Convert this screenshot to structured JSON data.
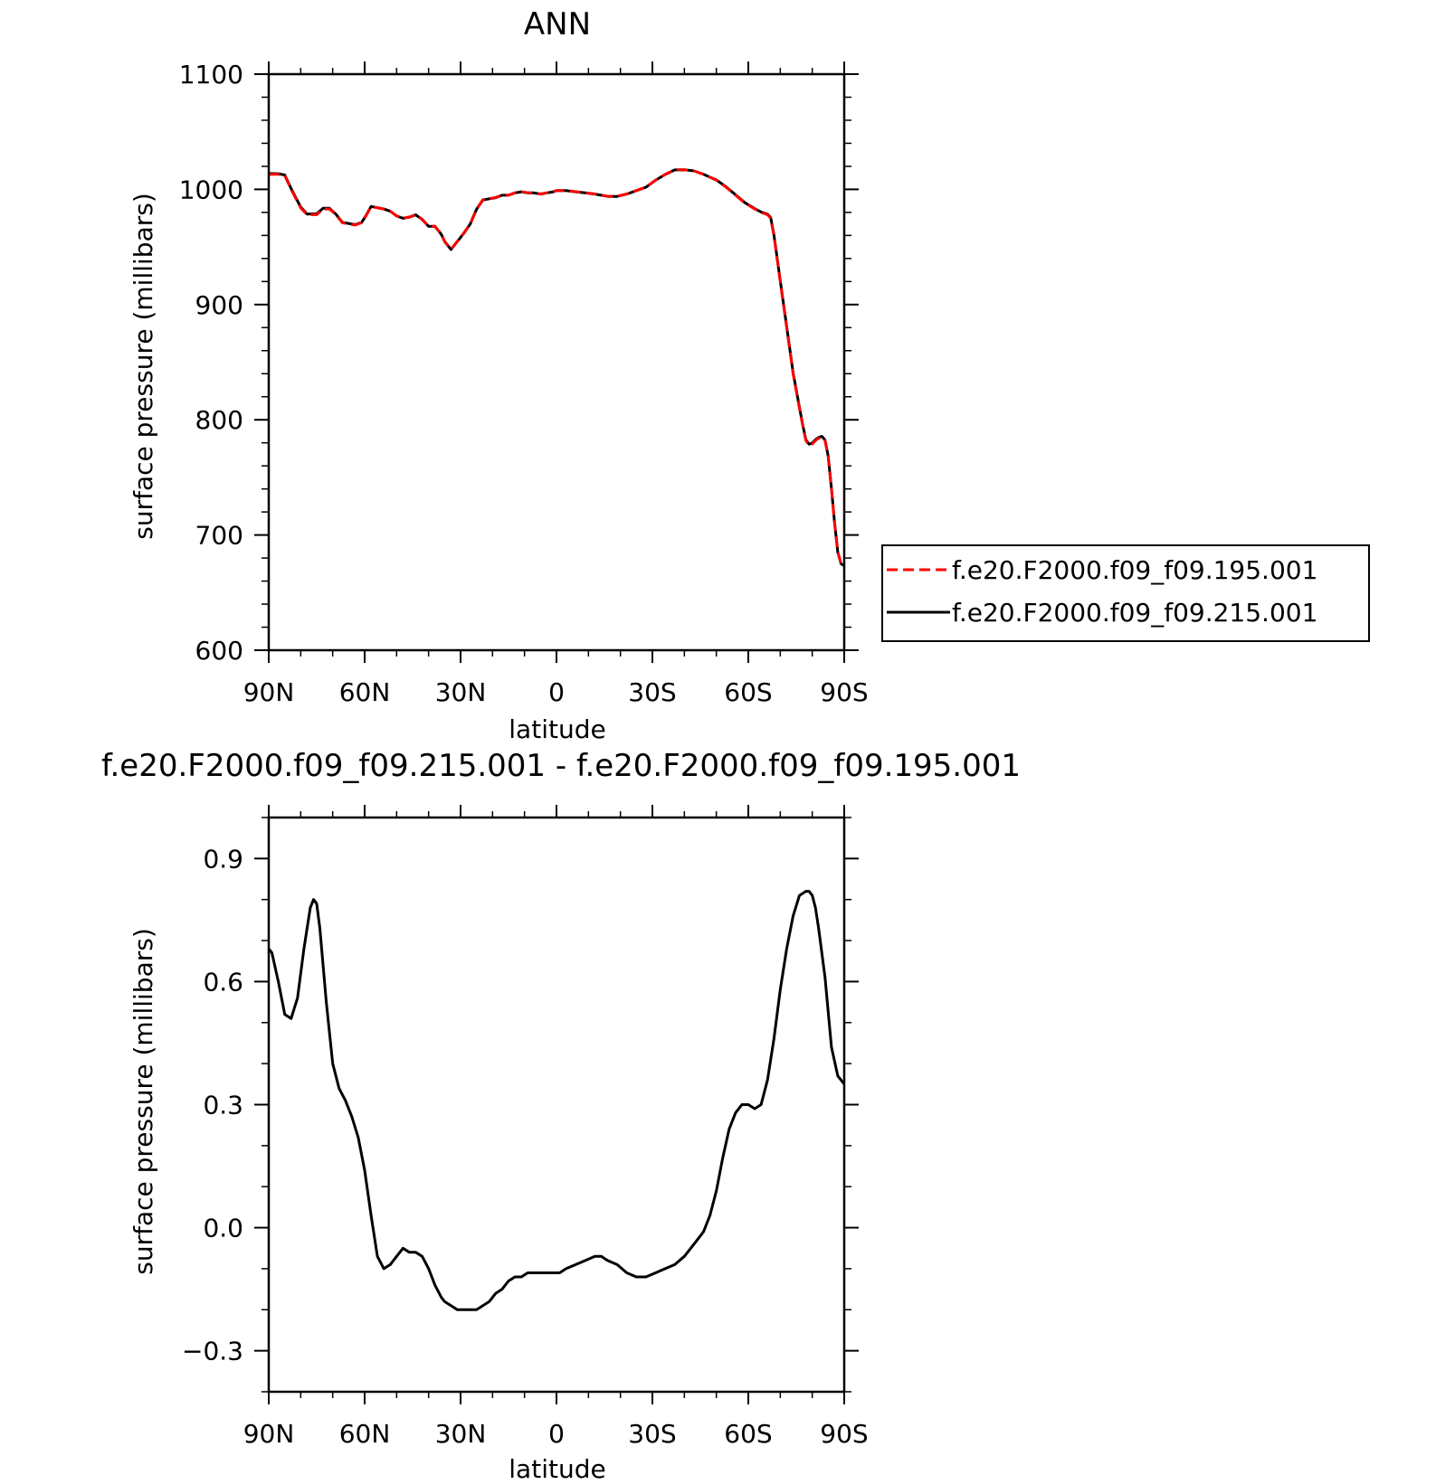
{
  "chart_data": [
    {
      "type": "line",
      "title": "ANN",
      "xlabel": "latitude",
      "ylabel": "surface pressure (millibars)",
      "xlim": [
        90,
        -90
      ],
      "ylim": [
        600,
        1100
      ],
      "x_ticks": [
        90,
        60,
        30,
        0,
        -30,
        -60,
        -90
      ],
      "x_tick_labels": [
        "90N",
        "60N",
        "30N",
        "0",
        "30S",
        "60S",
        "90S"
      ],
      "y_ticks": [
        600,
        700,
        800,
        900,
        1000,
        1100
      ],
      "y_tick_labels": [
        "600",
        "700",
        "800",
        "900",
        "1000",
        "1100"
      ],
      "legend_position": "right",
      "series": [
        {
          "name": "f.e20.F2000.f09_f09.195.001",
          "color": "#ff0000",
          "dash": "dashed",
          "x": [
            90,
            87,
            85,
            83,
            80,
            78,
            75,
            73,
            71,
            69,
            67,
            65,
            63,
            61,
            60,
            58,
            56,
            54,
            52,
            50,
            48,
            46,
            44,
            42,
            40,
            38,
            36,
            35,
            33,
            31,
            29,
            27,
            25,
            23,
            21,
            19,
            17,
            15,
            13,
            11,
            9,
            7,
            5,
            3,
            1,
            0,
            -3,
            -6,
            -9,
            -12,
            -14,
            -16,
            -19,
            -22,
            -25,
            -28,
            -31,
            -34,
            -37,
            -40,
            -43,
            -46,
            -50,
            -53,
            -56,
            -59,
            -62,
            -64,
            -66,
            -67,
            -68,
            -70,
            -72,
            -74,
            -76,
            -77,
            -78,
            -79,
            -80,
            -81,
            -82,
            -83,
            -84,
            -85,
            -86,
            -87,
            -88,
            -89,
            -90
          ],
          "values": [
            1013,
            1013,
            1012,
            1000,
            984,
            978,
            978,
            983,
            983,
            978,
            971,
            970,
            969,
            971,
            975,
            985,
            984,
            983,
            981,
            977,
            975,
            976,
            978,
            974,
            968,
            968,
            961,
            955,
            948,
            955,
            962,
            970,
            983,
            991,
            992,
            993,
            995,
            995,
            997,
            998,
            997,
            997,
            996,
            997,
            998,
            999,
            999,
            998,
            997,
            996,
            995,
            994,
            994,
            996,
            999,
            1002,
            1008,
            1013,
            1017,
            1017,
            1016,
            1013,
            1008,
            1002,
            995,
            988,
            983,
            980,
            978,
            975,
            960,
            920,
            880,
            840,
            810,
            795,
            782,
            778,
            779,
            782,
            784,
            785,
            782,
            768,
            740,
            710,
            685,
            675,
            673
          ]
        },
        {
          "name": "f.e20.F2000.f09_f09.215.001",
          "color": "#000000",
          "dash": "solid",
          "x": [
            90,
            87,
            85,
            83,
            80,
            78,
            75,
            73,
            71,
            69,
            67,
            65,
            63,
            61,
            60,
            58,
            56,
            54,
            52,
            50,
            48,
            46,
            44,
            42,
            40,
            38,
            36,
            35,
            33,
            31,
            29,
            27,
            25,
            23,
            21,
            19,
            17,
            15,
            13,
            11,
            9,
            7,
            5,
            3,
            1,
            0,
            -3,
            -6,
            -9,
            -12,
            -14,
            -16,
            -19,
            -22,
            -25,
            -28,
            -31,
            -34,
            -37,
            -40,
            -43,
            -46,
            -50,
            -53,
            -56,
            -59,
            -62,
            -64,
            -66,
            -67,
            -68,
            -70,
            -72,
            -74,
            -76,
            -77,
            -78,
            -79,
            -80,
            -81,
            -82,
            -83,
            -84,
            -85,
            -86,
            -87,
            -88,
            -89,
            -90
          ],
          "values": [
            1013.7,
            1013.6,
            1012.5,
            1000.8,
            984.7,
            978.6,
            978.8,
            983.7,
            983.6,
            978.5,
            971.4,
            970.4,
            969.4,
            971.3,
            975.3,
            985.2,
            984.1,
            983.0,
            981.0,
            976.9,
            974.9,
            975.9,
            977.9,
            973.9,
            967.9,
            967.9,
            960.9,
            954.9,
            947.8,
            954.8,
            961.8,
            969.8,
            982.8,
            990.8,
            991.8,
            992.8,
            994.9,
            994.9,
            996.9,
            997.9,
            996.9,
            996.9,
            995.9,
            996.9,
            997.9,
            998.9,
            998.9,
            997.9,
            996.9,
            995.9,
            994.9,
            993.9,
            993.9,
            995.9,
            998.9,
            1001.9,
            1007.9,
            1012.9,
            1016.9,
            1017.0,
            1016.0,
            1013.1,
            1008.2,
            1002.3,
            995.3,
            988.3,
            983.3,
            980.4,
            978.5,
            975.6,
            960.7,
            920.8,
            880.9,
            840.9,
            810.8,
            795.8,
            782.8,
            778.8,
            779.8,
            782.8,
            784.7,
            785.6,
            782.5,
            768.4,
            740.3,
            710.2,
            685.1,
            675.0,
            673.4
          ]
        }
      ]
    },
    {
      "type": "line",
      "title": "f.e20.F2000.f09_f09.215.001 - f.e20.F2000.f09_f09.195.001",
      "xlabel": "latitude",
      "ylabel": "surface pressure (millibars)",
      "xlim": [
        90,
        -90
      ],
      "ylim": [
        -0.4,
        1.0
      ],
      "x_ticks": [
        90,
        60,
        30,
        0,
        -30,
        -60,
        -90
      ],
      "x_tick_labels": [
        "90N",
        "60N",
        "30N",
        "0",
        "30S",
        "60S",
        "90S"
      ],
      "y_ticks": [
        -0.3,
        0.0,
        0.3,
        0.6,
        0.9
      ],
      "y_tick_labels": [
        "−0.3",
        "0.0",
        "0.3",
        "0.6",
        "0.9"
      ],
      "series": [
        {
          "color": "#000000",
          "dash": "solid",
          "x": [
            90,
            89,
            87,
            85,
            83,
            81,
            79,
            77,
            76,
            75,
            74,
            72,
            70,
            68,
            66,
            64,
            62,
            60,
            58,
            56,
            54,
            52,
            50,
            48,
            46,
            44,
            42,
            40,
            38,
            36,
            35,
            33,
            31,
            29,
            27,
            25,
            23,
            21,
            19,
            17,
            15,
            13,
            11,
            9,
            7,
            5,
            3,
            1,
            -1,
            -3,
            -6,
            -9,
            -12,
            -14,
            -16,
            -19,
            -22,
            -25,
            -28,
            -31,
            -34,
            -37,
            -40,
            -42,
            -44,
            -46,
            -48,
            -50,
            -52,
            -54,
            -56,
            -58,
            -60,
            -62,
            -64,
            -66,
            -68,
            -70,
            -72,
            -74,
            -76,
            -78,
            -79,
            -80,
            -81,
            -82,
            -84,
            -86,
            -88,
            -89,
            -90
          ],
          "values": [
            0.68,
            0.67,
            0.6,
            0.52,
            0.51,
            0.56,
            0.68,
            0.78,
            0.8,
            0.79,
            0.73,
            0.55,
            0.4,
            0.34,
            0.31,
            0.27,
            0.22,
            0.14,
            0.03,
            -0.07,
            -0.1,
            -0.09,
            -0.07,
            -0.05,
            -0.06,
            -0.06,
            -0.07,
            -0.1,
            -0.14,
            -0.17,
            -0.18,
            -0.19,
            -0.2,
            -0.2,
            -0.2,
            -0.2,
            -0.19,
            -0.18,
            -0.16,
            -0.15,
            -0.13,
            -0.12,
            -0.12,
            -0.11,
            -0.11,
            -0.11,
            -0.11,
            -0.11,
            -0.11,
            -0.1,
            -0.09,
            -0.08,
            -0.07,
            -0.07,
            -0.08,
            -0.09,
            -0.11,
            -0.12,
            -0.12,
            -0.11,
            -0.1,
            -0.09,
            -0.07,
            -0.05,
            -0.03,
            -0.01,
            0.03,
            0.09,
            0.17,
            0.24,
            0.28,
            0.3,
            0.3,
            0.29,
            0.3,
            0.36,
            0.46,
            0.58,
            0.68,
            0.76,
            0.81,
            0.82,
            0.82,
            0.81,
            0.78,
            0.73,
            0.61,
            0.44,
            0.37,
            0.36,
            0.35
          ]
        }
      ]
    }
  ]
}
